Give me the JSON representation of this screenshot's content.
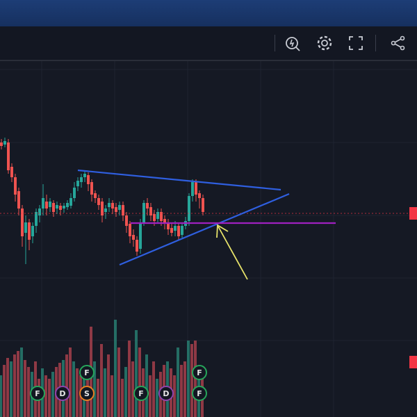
{
  "toolbar": {
    "buttons": [
      {
        "name": "alert-icon"
      },
      {
        "name": "gear-icon"
      },
      {
        "name": "fullscreen-icon"
      },
      {
        "name": "share-icon"
      }
    ]
  },
  "markers": [
    {
      "label": "F",
      "color": "#26a65b"
    },
    {
      "label": "D",
      "color": "#8e44ad"
    },
    {
      "label": "S",
      "color": "#e67e22"
    },
    {
      "label": "F",
      "color": "#26a65b"
    },
    {
      "label": "D",
      "color": "#8e44ad"
    },
    {
      "label": "F",
      "color": "#26a65b"
    },
    {
      "label": "F",
      "color": "#26a65b"
    },
    {
      "label": "F",
      "color": "#26a65b"
    }
  ],
  "colors": {
    "up": "#26a69a",
    "down": "#ef5350",
    "trendline": "#2f5fe0",
    "support": "#a020c0",
    "arrow": "#e8e46a",
    "price_tag": "#f23645"
  }
}
